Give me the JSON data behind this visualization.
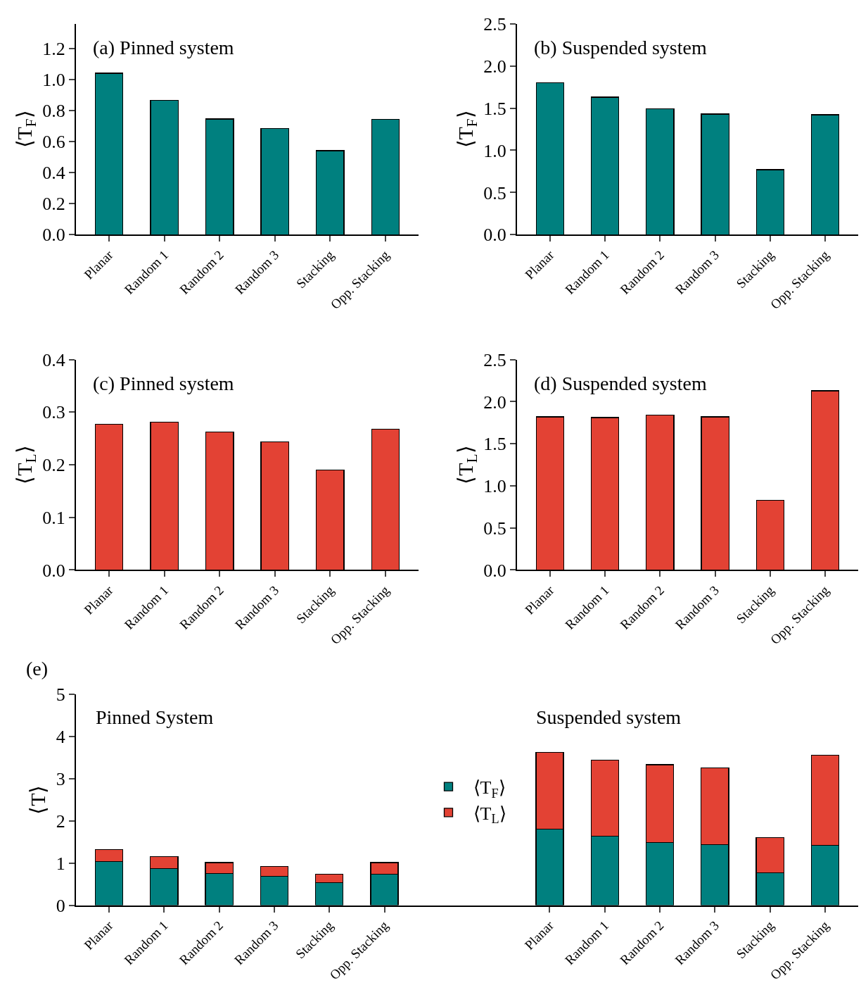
{
  "chart_data": [
    {
      "type": "bar",
      "title": "(a) Pinned system",
      "ylabel": "⟨T$_{F}$⟩",
      "categories": [
        "Planar",
        "Random 1",
        "Random 2",
        "Random 3",
        "Stacking",
        "Opp. Stacking"
      ],
      "values": [
        1.04,
        0.866,
        0.746,
        0.684,
        0.542,
        0.742
      ],
      "color": "#00807f",
      "ylim": [
        0,
        1.36
      ],
      "yticks": [
        {
          "value": 0,
          "label": "0.0"
        },
        0.2,
        0.4,
        0.6,
        0.8,
        {
          "value": 1,
          "label": "1.0"
        },
        1.2
      ],
      "legend": false
    },
    {
      "type": "bar",
      "title": "(b) Suspended system",
      "ylabel": "⟨T$_{F}$⟩",
      "categories": [
        "Planar",
        "Random 1",
        "Random 2",
        "Random 3",
        "Stacking",
        "Opp. Stacking"
      ],
      "values": [
        1.8,
        1.63,
        1.49,
        1.43,
        0.77,
        1.42
      ],
      "color": "#00807f",
      "ylim": [
        0,
        2.5
      ],
      "yticks": [
        {
          "value": 0,
          "label": "0.0"
        },
        0.5,
        {
          "value": 1,
          "label": "1.0"
        },
        1.5,
        {
          "value": 2,
          "label": "2.0"
        },
        2.5
      ],
      "legend": false
    },
    {
      "type": "bar",
      "title": "(c) Pinned system",
      "ylabel": "⟨T$_{L}$⟩",
      "categories": [
        "Planar",
        "Random 1",
        "Random 2",
        "Random 3",
        "Stacking",
        "Opp. Stacking"
      ],
      "values": [
        0.277,
        0.281,
        0.262,
        0.244,
        0.19,
        0.268
      ],
      "color": "#e34234",
      "ylim": [
        0,
        0.4
      ],
      "yticks": [
        {
          "value": 0,
          "label": "0.0"
        },
        0.1,
        0.2,
        0.3,
        0.4
      ],
      "legend": false
    },
    {
      "type": "bar",
      "title": "(d) Suspended system",
      "ylabel": "⟨T$_{L}$⟩",
      "categories": [
        "Planar",
        "Random 1",
        "Random 2",
        "Random 3",
        "Stacking",
        "Opp. Stacking"
      ],
      "values": [
        1.82,
        1.81,
        1.84,
        1.82,
        0.83,
        2.13
      ],
      "color": "#e34234",
      "ylim": [
        0,
        2.5
      ],
      "yticks": [
        {
          "value": 0,
          "label": "0.0"
        },
        0.5,
        {
          "value": 1,
          "label": "1.0"
        },
        1.5,
        {
          "value": 2,
          "label": "2.0"
        },
        2.5
      ],
      "legend": false
    },
    {
      "type": "bar",
      "title": "(e)",
      "ylabel": "⟨T⟩",
      "stacked": true,
      "legend": "center",
      "annotations": [
        "Pinned System",
        "Suspended system"
      ],
      "categories": [
        "Planar",
        "Random 1",
        "Random 2",
        "Random 3",
        "Stacking",
        "Opp. Stacking",
        null,
        null,
        "Planar",
        "Random 1",
        "Random 2",
        "Random 3",
        "Stacking",
        "Opp. Stacking"
      ],
      "series": [
        {
          "name": "⟨T$_{F}$⟩",
          "color": "#00807f",
          "values": [
            1.04,
            0.87,
            0.75,
            0.68,
            0.54,
            0.74,
            null,
            null,
            1.8,
            1.63,
            1.49,
            1.43,
            0.77,
            1.42
          ]
        },
        {
          "name": "⟨T$_{L}$⟩",
          "color": "#e34234",
          "values": [
            0.28,
            0.28,
            0.26,
            0.24,
            0.19,
            0.27,
            null,
            null,
            1.82,
            1.81,
            1.84,
            1.82,
            0.83,
            2.13
          ]
        }
      ],
      "ylim": [
        0,
        5
      ],
      "yticks": [
        0,
        1,
        2,
        3,
        4,
        5
      ]
    }
  ]
}
